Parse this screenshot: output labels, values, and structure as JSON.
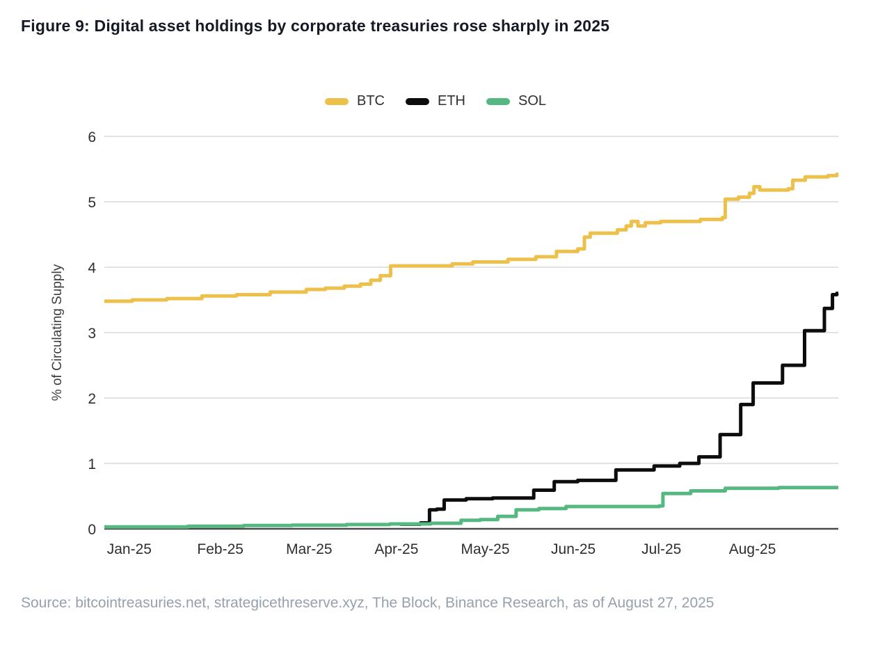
{
  "title": "Figure 9: Digital asset holdings by corporate treasuries rose sharply in 2025",
  "source": "Source: bitcointreasuries.net, strategicethreserve.xyz, The Block, Binance Research, as of August 27, 2025",
  "legend": [
    {
      "label": "BTC",
      "color": "#ecc04b"
    },
    {
      "label": "ETH",
      "color": "#0d0d0d"
    },
    {
      "label": "SOL",
      "color": "#56b881"
    }
  ],
  "colors": {
    "btc": "#ecc04b",
    "eth": "#0d0d0d",
    "sol": "#56b881",
    "gridline": "#d9d9d9",
    "axis_line": "#4a4a4a",
    "tick_label": "#2e2e2e",
    "axis_title": "#3c3c3c"
  },
  "chart_data": {
    "type": "line",
    "title": "Figure 9: Digital asset holdings by corporate treasuries rose sharply in 2025",
    "xlabel": "",
    "ylabel": "% of Circulating Supply",
    "ylim": [
      0,
      6
    ],
    "yticks": [
      0,
      1,
      2,
      3,
      4,
      5,
      6
    ],
    "grid": true,
    "legend_position": "top",
    "step_interpolation": "step-after",
    "xticks": [
      {
        "label": "Jan-25",
        "t": 0.034
      },
      {
        "label": "Feb-25",
        "t": 0.158
      },
      {
        "label": "Mar-25",
        "t": 0.279
      },
      {
        "label": "Apr-25",
        "t": 0.398
      },
      {
        "label": "May-25",
        "t": 0.519
      },
      {
        "label": "Jun-25",
        "t": 0.639
      },
      {
        "label": "Jul-25",
        "t": 0.759
      },
      {
        "label": "Aug-25",
        "t": 0.883
      }
    ],
    "x_unit": "fraction of axis from 2025-01 to 2025-08-27",
    "series": [
      {
        "name": "BTC",
        "color": "#ecc04b",
        "points": [
          [
            0.0,
            3.48
          ],
          [
            0.038,
            3.5
          ],
          [
            0.085,
            3.52
          ],
          [
            0.133,
            3.56
          ],
          [
            0.18,
            3.58
          ],
          [
            0.226,
            3.62
          ],
          [
            0.275,
            3.66
          ],
          [
            0.301,
            3.68
          ],
          [
            0.327,
            3.71
          ],
          [
            0.349,
            3.74
          ],
          [
            0.363,
            3.8
          ],
          [
            0.376,
            3.87
          ],
          [
            0.39,
            4.02
          ],
          [
            0.474,
            4.05
          ],
          [
            0.502,
            4.08
          ],
          [
            0.55,
            4.12
          ],
          [
            0.588,
            4.16
          ],
          [
            0.616,
            4.24
          ],
          [
            0.645,
            4.28
          ],
          [
            0.654,
            4.46
          ],
          [
            0.662,
            4.52
          ],
          [
            0.699,
            4.57
          ],
          [
            0.711,
            4.63
          ],
          [
            0.718,
            4.7
          ],
          [
            0.727,
            4.63
          ],
          [
            0.737,
            4.68
          ],
          [
            0.758,
            4.7
          ],
          [
            0.812,
            4.73
          ],
          [
            0.842,
            4.76
          ],
          [
            0.846,
            5.04
          ],
          [
            0.864,
            5.07
          ],
          [
            0.879,
            5.13
          ],
          [
            0.885,
            5.23
          ],
          [
            0.893,
            5.18
          ],
          [
            0.932,
            5.2
          ],
          [
            0.938,
            5.33
          ],
          [
            0.955,
            5.38
          ],
          [
            0.986,
            5.4
          ],
          [
            0.998,
            5.42
          ]
        ]
      },
      {
        "name": "ETH",
        "color": "#0d0d0d",
        "points": [
          [
            0.403,
            0.07
          ],
          [
            0.431,
            0.09
          ],
          [
            0.443,
            0.29
          ],
          [
            0.453,
            0.3
          ],
          [
            0.463,
            0.44
          ],
          [
            0.493,
            0.46
          ],
          [
            0.529,
            0.47
          ],
          [
            0.585,
            0.59
          ],
          [
            0.613,
            0.72
          ],
          [
            0.645,
            0.74
          ],
          [
            0.697,
            0.9
          ],
          [
            0.749,
            0.96
          ],
          [
            0.784,
            1.0
          ],
          [
            0.81,
            1.1
          ],
          [
            0.839,
            1.44
          ],
          [
            0.867,
            1.9
          ],
          [
            0.884,
            2.23
          ],
          [
            0.924,
            2.5
          ],
          [
            0.954,
            3.03
          ],
          [
            0.981,
            3.37
          ],
          [
            0.992,
            3.58
          ],
          [
            0.998,
            3.6
          ]
        ]
      },
      {
        "name": "SOL",
        "color": "#56b881",
        "points": [
          [
            0.0,
            0.03
          ],
          [
            0.114,
            0.04
          ],
          [
            0.19,
            0.05
          ],
          [
            0.256,
            0.055
          ],
          [
            0.33,
            0.065
          ],
          [
            0.389,
            0.075
          ],
          [
            0.445,
            0.085
          ],
          [
            0.486,
            0.13
          ],
          [
            0.512,
            0.14
          ],
          [
            0.536,
            0.19
          ],
          [
            0.561,
            0.29
          ],
          [
            0.592,
            0.31
          ],
          [
            0.629,
            0.34
          ],
          [
            0.756,
            0.35
          ],
          [
            0.761,
            0.54
          ],
          [
            0.799,
            0.58
          ],
          [
            0.846,
            0.62
          ],
          [
            0.919,
            0.63
          ],
          [
            0.998,
            0.63
          ]
        ]
      }
    ]
  }
}
